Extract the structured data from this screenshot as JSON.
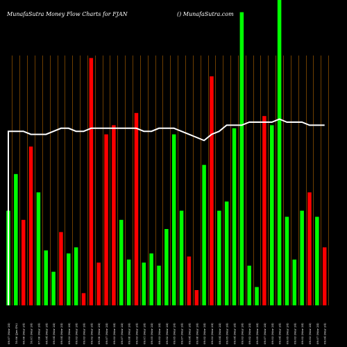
{
  "header": {
    "left": "MunafaSutra  Money Flow  Charts for FJAN",
    "right": "() MunafaSutra.com"
  },
  "colors": {
    "background": "#000000",
    "grid": "#8a4f00",
    "up": "#00ff00",
    "down": "#ff0000",
    "line": "#ffffff"
  },
  "chart_data": {
    "type": "bar",
    "title": "",
    "xlabel": "",
    "ylabel": "",
    "ylim": [
      0,
      100
    ],
    "grid": true,
    "legend": "none",
    "categories": [
      "09.07 (Mar 24)",
      "10.06 (Jan 4%)",
      "06.06 (Mar 24)",
      "10.01 (Mar 24)",
      "07.06 (Mar 24)",
      "08.04 (Mar 24)",
      "09.04 (Mar 24)",
      "09.04 (Mar 24)",
      "09.03 (Mar 24)",
      "09.03 (Mar 24)",
      "09.03 (Mar 24)",
      "09.02 (Mar 24)",
      "09.08 (Mar 24)",
      "09.07 (Mar 24)",
      "09.03 (Mar 24)",
      "09.07 (Mar 24)",
      "09.08 (Mar 24)",
      "09.03 (Mar 24)",
      "09.01 (Mar 24)",
      "09.05 (Mar 24)",
      "08.03 (Mar 24)",
      "09.02 (Mar 24)",
      "09.05 (Mar 24)",
      "09.07 (Mar 24)",
      "09.04 (Mar 24)",
      "09.08 (Mar 24)",
      "09.02 (Mar 24)",
      "09.03 (Mar 24)",
      "08.04 (Mar 24)",
      "09.05 (Mar 24)",
      "09.04 (Mar 24)",
      "09.03 (Mar 24)",
      "09.02 (Mar 24)",
      "09.05 (Mar 24)",
      "09.07 (Mar 24)",
      "09.03 (Mar 24)",
      "09.04 (Mar 24)",
      "09.05 (Mar 24)",
      "09.03 (Mar 24)",
      "09.02 (Mar 24)",
      "09.03 (Mar 24)",
      "09.07 (Mar 24)",
      "09.04 (Mar 24)"
    ],
    "series": [
      {
        "values": [
          31,
          43,
          28,
          52,
          37,
          18,
          11,
          24,
          17,
          19,
          4,
          81,
          14,
          56,
          59,
          28,
          15,
          63,
          14,
          17,
          13,
          25,
          56,
          31,
          16,
          5,
          46,
          75,
          31,
          34,
          58,
          96,
          13,
          6,
          62,
          59,
          100,
          29,
          15,
          31,
          37,
          29,
          19
        ],
        "directions": [
          "up",
          "up",
          "down",
          "down",
          "up",
          "up",
          "up",
          "down",
          "up",
          "up",
          "down",
          "down",
          "down",
          "down",
          "down",
          "up",
          "up",
          "down",
          "up",
          "up",
          "up",
          "up",
          "up",
          "up",
          "down",
          "down",
          "up",
          "down",
          "up",
          "up",
          "up",
          "up",
          "up",
          "up",
          "down",
          "up",
          "up",
          "up",
          "up",
          "up",
          "down",
          "up",
          "down"
        ]
      },
      {
        "values": [
          57,
          57,
          57,
          56,
          56,
          56,
          57,
          58,
          58,
          57,
          57,
          58,
          58,
          58,
          58,
          58,
          58,
          58,
          57,
          57,
          58,
          58,
          58,
          57,
          56,
          55,
          54,
          56,
          57,
          59,
          59,
          59,
          60,
          60,
          60,
          60,
          61,
          60,
          60,
          60,
          59,
          59,
          59
        ]
      }
    ]
  }
}
